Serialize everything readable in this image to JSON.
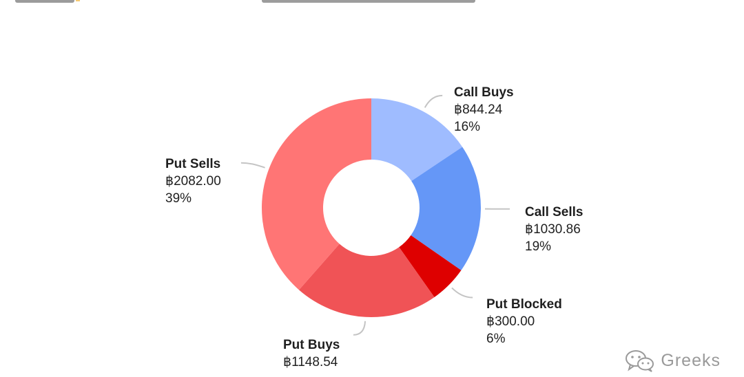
{
  "chart_data": {
    "type": "pie",
    "donut": true,
    "title": "",
    "slices": [
      {
        "name": "Call Buys",
        "value_text": "฿844.24",
        "value": 844.24,
        "percent_text": "16%",
        "percent": 16,
        "color": "#9fbcff"
      },
      {
        "name": "Call Sells",
        "value_text": "฿1030.86",
        "value": 1030.86,
        "percent_text": "19%",
        "percent": 19,
        "color": "#6597f7"
      },
      {
        "name": "Put Blocked",
        "value_text": "฿300.00",
        "value": 300.0,
        "percent_text": "6%",
        "percent": 6,
        "color": "#de0000"
      },
      {
        "name": "Put Buys",
        "value_text": "฿1148.54",
        "value": 1148.54,
        "percent_text": "",
        "percent": 21,
        "color": "#f05356"
      },
      {
        "name": "Put Sells",
        "value_text": "฿2082.00",
        "value": 2082.0,
        "percent_text": "39%",
        "percent": 39,
        "color": "#ff7575"
      }
    ]
  },
  "watermark": {
    "text": "Greeks",
    "icon": "wechat-icon"
  }
}
